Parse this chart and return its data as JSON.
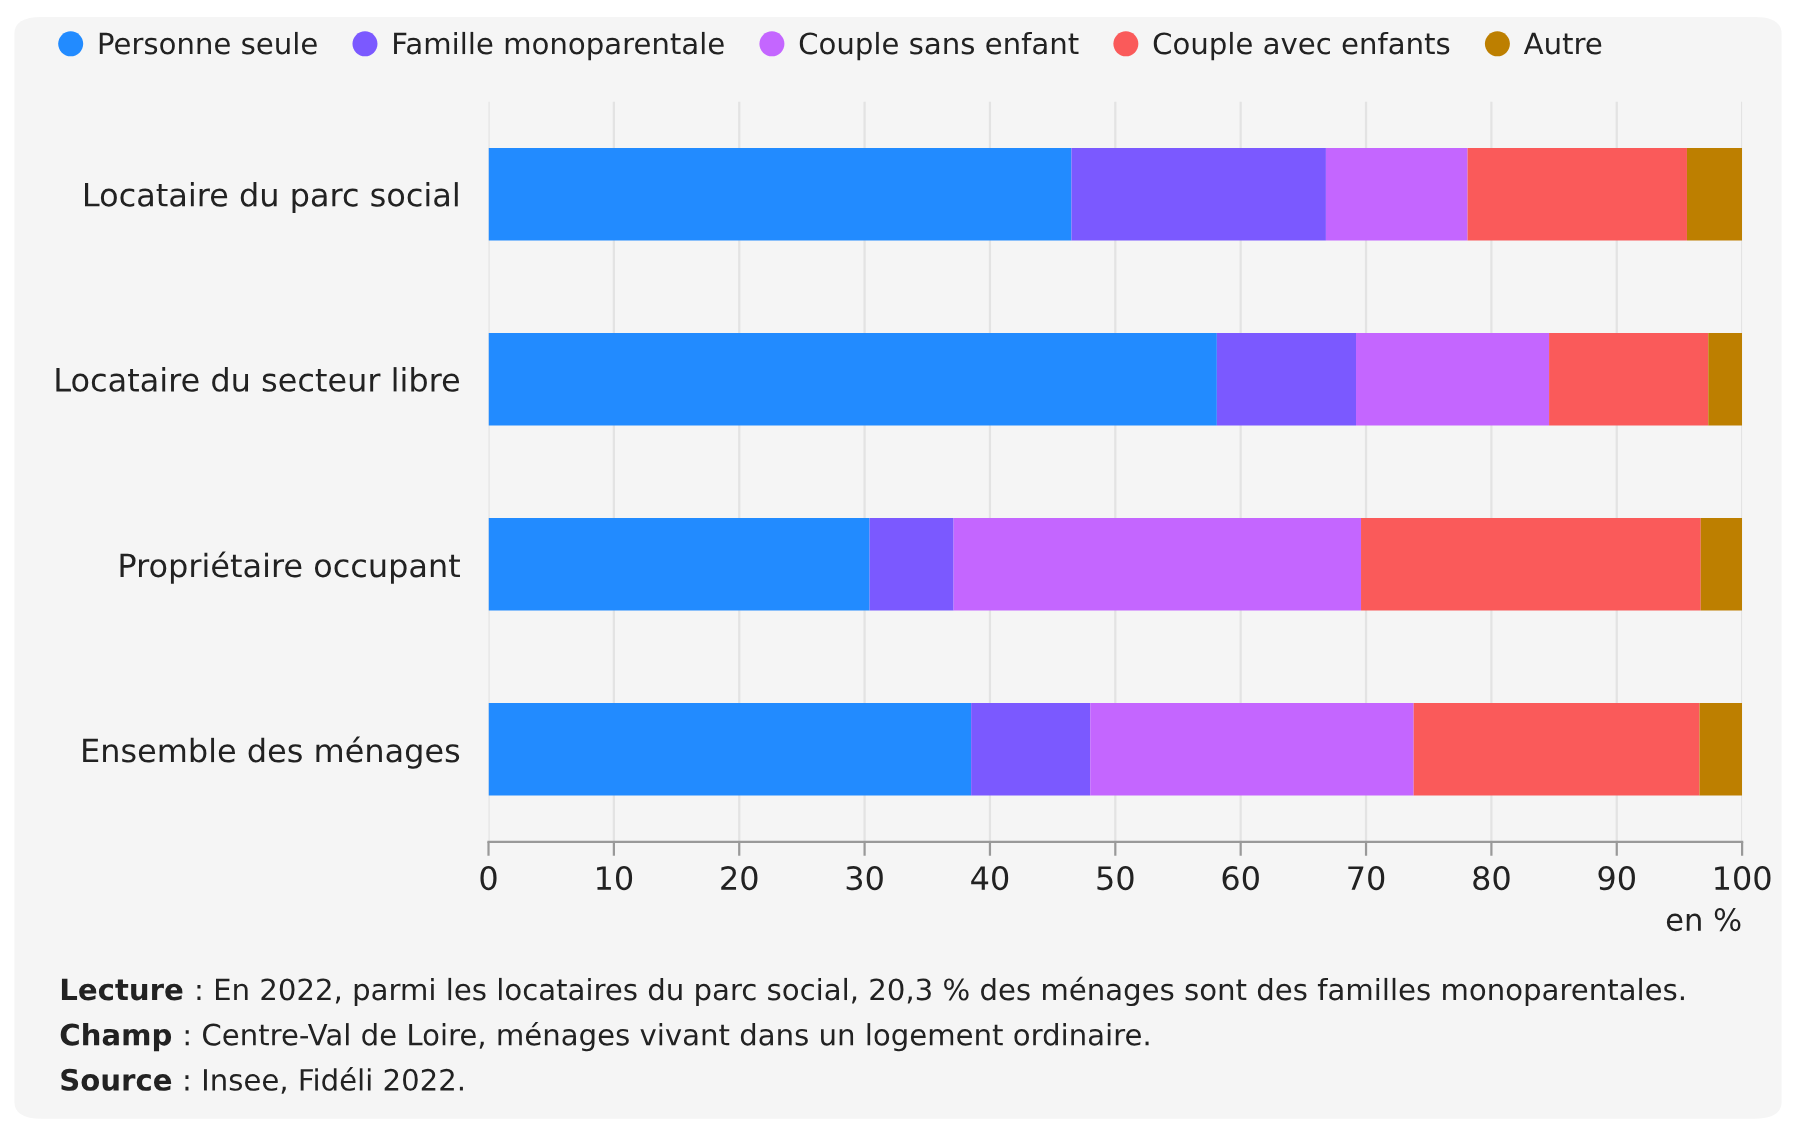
{
  "chart_data": {
    "type": "bar",
    "orientation": "horizontal",
    "stacked": true,
    "categories": [
      "Locataire du parc social",
      "Locataire du secteur libre",
      "Propriétaire occupant",
      "Ensemble des ménages"
    ],
    "series": [
      {
        "name": "Personne seule",
        "color": "#228bff",
        "values": [
          46.5,
          58.1,
          30.4,
          38.5
        ]
      },
      {
        "name": "Famille monoparentale",
        "color": "#7b59ff",
        "values": [
          20.3,
          11.1,
          6.7,
          9.5
        ]
      },
      {
        "name": "Couple sans enfant",
        "color": "#c466ff",
        "values": [
          11.3,
          15.4,
          32.5,
          25.8
        ]
      },
      {
        "name": "Couple avec enfants",
        "color": "#fa5a5a",
        "values": [
          17.5,
          12.7,
          27.1,
          22.8
        ]
      },
      {
        "name": "Autre",
        "color": "#bd7f00",
        "values": [
          4.4,
          2.7,
          3.3,
          3.4
        ]
      }
    ],
    "xlim": [
      0,
      100
    ],
    "xticks": [
      0,
      10,
      20,
      30,
      40,
      50,
      60,
      70,
      80,
      90,
      100
    ],
    "xlabel": "en %",
    "grid": "x",
    "legend": "top",
    "annotations": [
      "Lecture : En 2022, parmi les locataires du parc social, 20,3 % des ménages sont des familles monoparentales.",
      "Champ : Centre-Val de Loire, ménages vivant dans un logement ordinaire.",
      "Source : Insee, Fidéli 2022."
    ]
  }
}
